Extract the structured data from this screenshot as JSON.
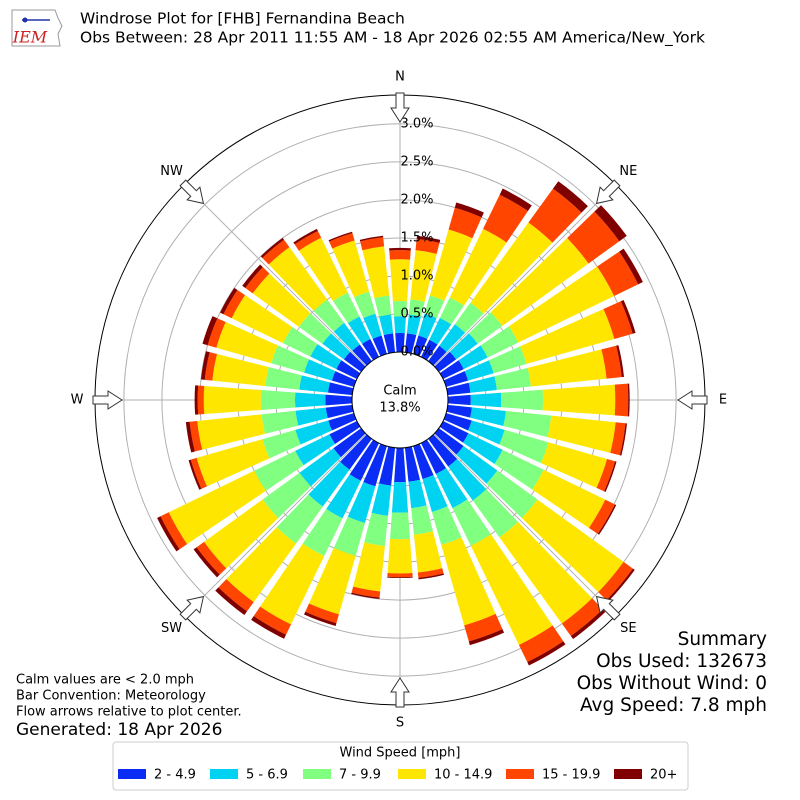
{
  "chart_data": {
    "type": "windrose",
    "logo": "IEM",
    "title": "Windrose Plot for [FHB] Fernandina Beach",
    "subtitle": "Obs Between: 28 Apr 2011 11:55 AM - 18 Apr 2026 02:55 AM America/New_York",
    "x": [
      0,
      10,
      20,
      30,
      40,
      50,
      60,
      70,
      80,
      90,
      100,
      110,
      120,
      130,
      140,
      150,
      160,
      170,
      180,
      190,
      200,
      210,
      220,
      230,
      240,
      250,
      260,
      270,
      280,
      290,
      300,
      310,
      320,
      330,
      340,
      350
    ],
    "xticks": [
      {
        "value": 0,
        "label": "N"
      },
      {
        "value": 45,
        "label": "NE"
      },
      {
        "value": 90,
        "label": "E"
      },
      {
        "value": 135,
        "label": "SE"
      },
      {
        "value": 180,
        "label": "S"
      },
      {
        "value": 225,
        "label": "SW"
      },
      {
        "value": 270,
        "label": "W"
      },
      {
        "value": 315,
        "label": "NW"
      }
    ],
    "rlim": [
      0,
      3.38
    ],
    "rticks": [
      {
        "value": 0,
        "label": "0.0%"
      },
      {
        "value": 0.5,
        "label": "0.5%"
      },
      {
        "value": 1,
        "label": "1.0%"
      },
      {
        "value": 1.5,
        "label": "1.5%"
      },
      {
        "value": 2,
        "label": "2.0%"
      },
      {
        "value": 2.5,
        "label": "2.5%"
      },
      {
        "value": 3,
        "label": "3.0%"
      }
    ],
    "grid": true,
    "calm": {
      "label": "Calm",
      "value": 13.8,
      "value_label": "13.8%"
    },
    "legend_title": "Wind Speed [mph]",
    "series": [
      {
        "name": "2 - 4.9",
        "color": "#0a2cf5",
        "values": [
          0.25,
          0.25,
          0.25,
          0.25,
          0.25,
          0.28,
          0.3,
          0.3,
          0.3,
          0.3,
          0.32,
          0.35,
          0.37,
          0.4,
          0.45,
          0.45,
          0.45,
          0.45,
          0.45,
          0.5,
          0.55,
          0.55,
          0.5,
          0.45,
          0.4,
          0.35,
          0.35,
          0.35,
          0.32,
          0.3,
          0.3,
          0.28,
          0.27,
          0.26,
          0.25,
          0.25
        ]
      },
      {
        "name": "5 - 6.9",
        "color": "#00d2f2",
        "values": [
          0.22,
          0.25,
          0.3,
          0.32,
          0.35,
          0.35,
          0.35,
          0.35,
          0.35,
          0.4,
          0.45,
          0.45,
          0.5,
          0.55,
          0.55,
          0.5,
          0.45,
          0.35,
          0.4,
          0.4,
          0.5,
          0.55,
          0.6,
          0.55,
          0.5,
          0.45,
          0.4,
          0.4,
          0.38,
          0.38,
          0.38,
          0.35,
          0.35,
          0.33,
          0.3,
          0.25
        ]
      },
      {
        "name": "7 - 9.9",
        "color": "#80ff80",
        "values": [
          0.2,
          0.2,
          0.25,
          0.3,
          0.35,
          0.4,
          0.45,
          0.45,
          0.45,
          0.55,
          0.6,
          0.6,
          0.6,
          0.65,
          0.6,
          0.55,
          0.45,
          0.35,
          0.35,
          0.4,
          0.45,
          0.55,
          0.6,
          0.6,
          0.6,
          0.45,
          0.45,
          0.45,
          0.45,
          0.45,
          0.4,
          0.38,
          0.38,
          0.35,
          0.3,
          0.25
        ]
      },
      {
        "name": "10 - 14.9",
        "color": "#ffe600",
        "values": [
          0.55,
          0.65,
          0.9,
          1.0,
          1.3,
          1.4,
          1.4,
          1.2,
          1.0,
          0.95,
          0.85,
          0.8,
          0.9,
          1.4,
          1.4,
          1.45,
          1.1,
          0.5,
          0.45,
          0.6,
          0.8,
          1.0,
          0.95,
          0.95,
          1.25,
          0.9,
          0.85,
          0.75,
          0.7,
          0.75,
          0.75,
          0.75,
          0.85,
          0.8,
          0.7,
          0.65
        ]
      },
      {
        "name": "15 - 19.9",
        "color": "#ff4500",
        "values": [
          0.12,
          0.15,
          0.3,
          0.5,
          0.55,
          0.5,
          0.35,
          0.25,
          0.2,
          0.17,
          0.13,
          0.11,
          0.14,
          0.15,
          0.2,
          0.25,
          0.22,
          0.07,
          0.05,
          0.08,
          0.12,
          0.15,
          0.15,
          0.12,
          0.12,
          0.08,
          0.1,
          0.08,
          0.1,
          0.12,
          0.12,
          0.12,
          0.12,
          0.1,
          0.1,
          0.12
        ]
      },
      {
        "name": "20+",
        "color": "#800000",
        "values": [
          0.03,
          0.04,
          0.07,
          0.09,
          0.12,
          0.12,
          0.07,
          0.04,
          0.03,
          0.02,
          0.02,
          0.02,
          0.02,
          0.03,
          0.05,
          0.05,
          0.05,
          0.02,
          0.01,
          0.02,
          0.04,
          0.06,
          0.06,
          0.05,
          0.05,
          0.03,
          0.05,
          0.04,
          0.05,
          0.07,
          0.05,
          0.05,
          0.03,
          0.03,
          0.02,
          0.02
        ]
      }
    ],
    "summary": [
      "Summary",
      "Obs Used: 132673",
      "Obs Without Wind: 0",
      "Avg Speed: 7.8 mph"
    ],
    "notes": [
      "Calm values are < 2.0 mph",
      "Bar Convention: Meteorology",
      "Flow arrows relative to plot center."
    ],
    "generated": "Generated: 18 Apr 2026"
  }
}
